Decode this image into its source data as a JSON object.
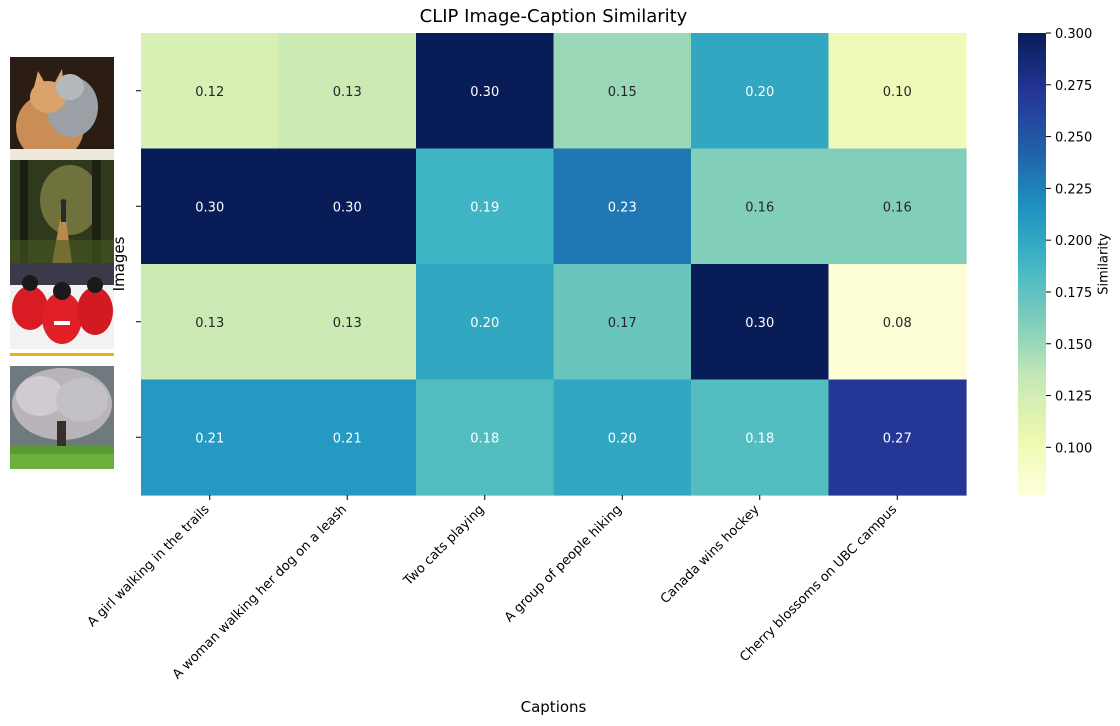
{
  "chart_data": {
    "type": "heatmap",
    "title": "CLIP Image-Caption Similarity",
    "xlabel": "Captions",
    "ylabel": "Images",
    "colorbar_label": "Similarity",
    "colormap": "YlGnBu",
    "vmin": 0.077,
    "vmax": 0.3,
    "colorbar_ticks": [
      "0.100",
      "0.125",
      "0.150",
      "0.175",
      "0.200",
      "0.225",
      "0.250",
      "0.275",
      "0.300"
    ],
    "columns": [
      "A girl walking in the trails",
      "A woman walking her dog on a leash",
      "Two cats playing",
      "A group of people hiking",
      "Canada wins hockey",
      "Cherry blossoms on UBC campus"
    ],
    "rows": [
      {
        "image": "two-cats-photo",
        "values": [
          0.12,
          0.13,
          0.3,
          0.15,
          0.2,
          0.1
        ]
      },
      {
        "image": "forest-trail-photo",
        "values": [
          0.3,
          0.3,
          0.19,
          0.23,
          0.16,
          0.16
        ]
      },
      {
        "image": "hockey-team-photo",
        "values": [
          0.13,
          0.13,
          0.2,
          0.17,
          0.3,
          0.08
        ]
      },
      {
        "image": "cherry-blossom-tree-photo",
        "values": [
          0.21,
          0.21,
          0.18,
          0.2,
          0.18,
          0.27
        ]
      }
    ],
    "annotation_format": "0.00"
  }
}
